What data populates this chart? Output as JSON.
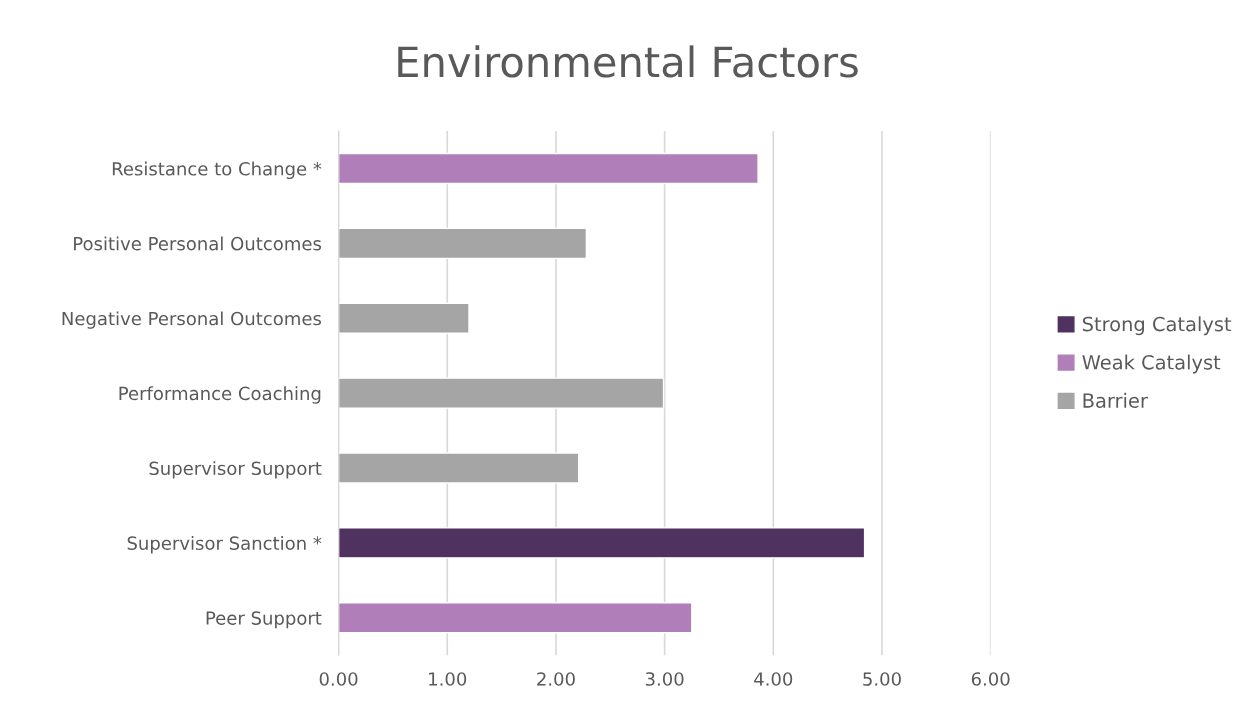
{
  "chart_data": {
    "type": "bar",
    "orientation": "horizontal",
    "title": "Environmental Factors",
    "categories": [
      "Resistance to Change *",
      "Positive Personal Outcomes",
      "Negative Personal Outcomes",
      "Performance Coaching",
      "Supervisor Support",
      "Supervisor Sanction *",
      "Peer Support"
    ],
    "series": [
      {
        "name": "Strong Catalyst",
        "color": "#4f3260",
        "values": [
          null,
          null,
          null,
          null,
          null,
          4.84,
          null
        ]
      },
      {
        "name": "Weak Catalyst",
        "color": "#b07fba",
        "values": [
          3.86,
          null,
          null,
          null,
          null,
          null,
          3.25
        ]
      },
      {
        "name": "Barrier",
        "color": "#a5a5a5",
        "values": [
          null,
          2.28,
          1.2,
          2.99,
          2.21,
          null,
          null
        ]
      }
    ],
    "xlim": [
      0,
      6
    ],
    "xticks": [
      {
        "value": 0,
        "label": "0.00"
      },
      {
        "value": 1,
        "label": "1.00"
      },
      {
        "value": 2,
        "label": "2.00"
      },
      {
        "value": 3,
        "label": "3.00"
      },
      {
        "value": 4,
        "label": "4.00"
      },
      {
        "value": 5,
        "label": "5.00"
      },
      {
        "value": 6,
        "label": "6.00"
      }
    ],
    "grid": "x",
    "legend": "right"
  }
}
